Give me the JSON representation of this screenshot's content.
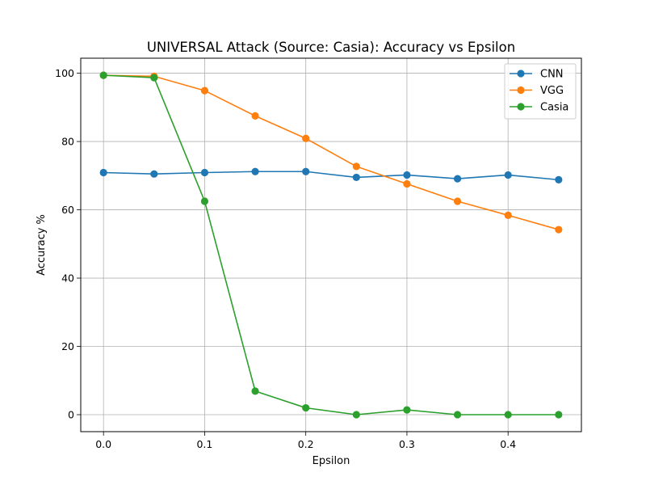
{
  "chart_data": {
    "type": "line",
    "title": "UNIVERSAL Attack (Source: Casia): Accuracy vs Epsilon",
    "xlabel": "Epsilon",
    "ylabel": "Accuracy %",
    "x": [
      0.0,
      0.05,
      0.1,
      0.15,
      0.2,
      0.25,
      0.3,
      0.35,
      0.4,
      0.45
    ],
    "xlim": [
      -0.0225,
      0.4725
    ],
    "ylim": [
      -4.97,
      104.4
    ],
    "xticks": [
      0.0,
      0.1,
      0.2,
      0.3,
      0.4
    ],
    "xtick_labels": [
      "0.0",
      "0.1",
      "0.2",
      "0.3",
      "0.4"
    ],
    "yticks": [
      0,
      20,
      40,
      60,
      80,
      100
    ],
    "ytick_labels": [
      "0",
      "20",
      "40",
      "60",
      "80",
      "100"
    ],
    "grid": true,
    "legend_position": "top-right",
    "series": [
      {
        "name": "CNN",
        "color": "#1f77b4",
        "marker": "circle",
        "values": [
          70.9,
          70.5,
          70.9,
          71.2,
          71.2,
          69.5,
          70.2,
          69.1,
          70.2,
          68.8
        ]
      },
      {
        "name": "VGG",
        "color": "#ff7f0e",
        "marker": "circle",
        "values": [
          99.4,
          99.1,
          94.9,
          87.5,
          80.9,
          72.7,
          67.6,
          62.5,
          58.4,
          54.2
        ]
      },
      {
        "name": "Casia",
        "color": "#2ca02c",
        "marker": "circle",
        "values": [
          99.4,
          98.7,
          62.5,
          6.9,
          2.0,
          0.0,
          1.4,
          0.0,
          0.0,
          0.0
        ]
      }
    ]
  }
}
